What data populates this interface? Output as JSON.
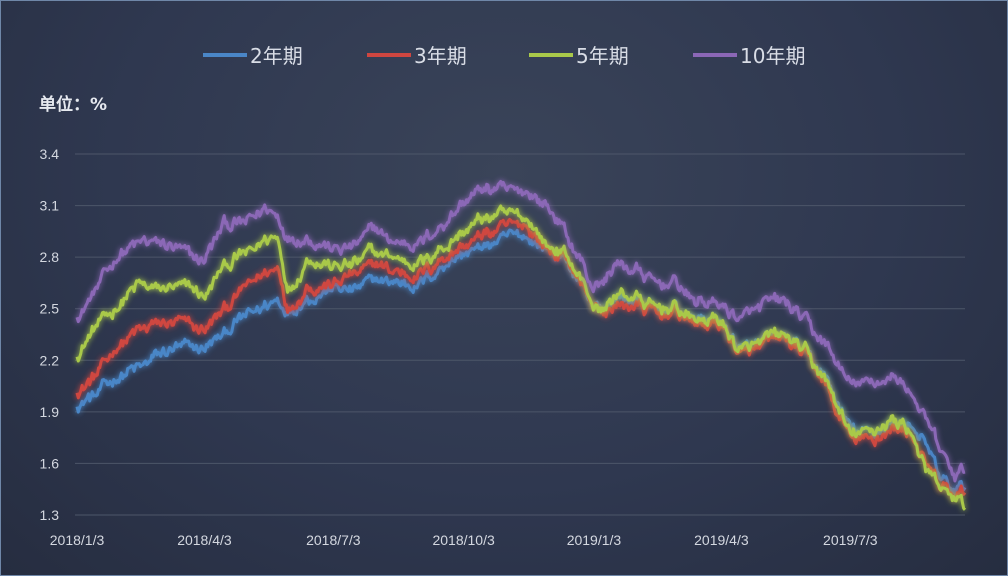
{
  "chart_data": {
    "type": "line",
    "unit_label": "单位：%",
    "x_tick_labels": [
      "2018/1/3",
      "2018/4/3",
      "2018/7/3",
      "2018/10/3",
      "2019/1/3",
      "2019/4/3",
      "2019/7/3"
    ],
    "y_tick_labels": [
      "1.3",
      "1.6",
      "1.9",
      "2.2",
      "2.5",
      "2.8",
      "3.1",
      "3.4"
    ],
    "ylim": [
      1.3,
      3.4
    ],
    "y_ticks": [
      1.3,
      1.6,
      1.9,
      2.2,
      2.5,
      2.8,
      3.1,
      3.4
    ],
    "grid": true,
    "legend_position": "top",
    "x": [
      "2018/1/3",
      "2018/1/17",
      "2018/2/1",
      "2018/2/15",
      "2018/3/1",
      "2018/3/15",
      "2018/4/3",
      "2018/4/17",
      "2018/5/2",
      "2018/5/16",
      "2018/5/25",
      "2018/6/1",
      "2018/6/15",
      "2018/7/3",
      "2018/7/17",
      "2018/8/1",
      "2018/8/15",
      "2018/9/3",
      "2018/9/17",
      "2018/10/3",
      "2018/10/17",
      "2018/11/1",
      "2018/11/15",
      "2018/12/1",
      "2018/12/15",
      "2019/1/3",
      "2019/1/10",
      "2019/1/17",
      "2019/2/1",
      "2019/2/15",
      "2019/3/1",
      "2019/3/15",
      "2019/4/3",
      "2019/4/17",
      "2019/5/2",
      "2019/5/16",
      "2019/6/1",
      "2019/6/15",
      "2019/7/3",
      "2019/7/17",
      "2019/8/1",
      "2019/8/15",
      "2019/8/25",
      "2019/9/5",
      "2019/9/15",
      "2019/9/22"
    ],
    "series": [
      {
        "name": "2年期",
        "color": "#4a86c7",
        "values": [
          1.93,
          2.0,
          2.1,
          2.15,
          2.22,
          2.27,
          2.27,
          2.35,
          2.46,
          2.52,
          2.56,
          2.48,
          2.56,
          2.62,
          2.6,
          2.67,
          2.66,
          2.64,
          2.75,
          2.82,
          2.86,
          2.9,
          2.93,
          2.85,
          2.78,
          2.52,
          2.48,
          2.55,
          2.55,
          2.49,
          2.5,
          2.45,
          2.43,
          2.25,
          2.3,
          2.35,
          2.25,
          2.1,
          1.8,
          1.76,
          1.84,
          1.83,
          1.7,
          1.5,
          1.45,
          1.46
        ]
      },
      {
        "name": "3年期",
        "color": "#cf4640",
        "values": [
          2.01,
          2.12,
          2.28,
          2.37,
          2.41,
          2.42,
          2.38,
          2.49,
          2.62,
          2.7,
          2.75,
          2.5,
          2.63,
          2.65,
          2.69,
          2.76,
          2.72,
          2.7,
          2.79,
          2.86,
          2.93,
          2.97,
          2.99,
          2.85,
          2.79,
          2.52,
          2.46,
          2.52,
          2.52,
          2.47,
          2.48,
          2.42,
          2.4,
          2.22,
          2.28,
          2.33,
          2.23,
          2.07,
          1.73,
          1.73,
          1.8,
          1.78,
          1.58,
          1.46,
          1.4,
          1.43
        ]
      },
      {
        "name": "5年期",
        "color": "#a9c94a",
        "values": [
          2.22,
          2.4,
          2.52,
          2.63,
          2.62,
          2.63,
          2.58,
          2.75,
          2.82,
          2.9,
          2.92,
          2.6,
          2.79,
          2.75,
          2.76,
          2.83,
          2.79,
          2.77,
          2.85,
          2.94,
          3.03,
          3.05,
          3.04,
          2.87,
          2.81,
          2.53,
          2.48,
          2.58,
          2.57,
          2.5,
          2.51,
          2.44,
          2.42,
          2.25,
          2.3,
          2.36,
          2.25,
          2.09,
          1.77,
          1.78,
          1.85,
          1.8,
          1.55,
          1.44,
          1.4,
          1.33
        ]
      },
      {
        "name": "10年期",
        "color": "#8b67b6",
        "values": [
          2.45,
          2.62,
          2.82,
          2.88,
          2.88,
          2.85,
          2.78,
          3.0,
          3.0,
          3.08,
          3.03,
          2.92,
          2.91,
          2.85,
          2.86,
          2.97,
          2.88,
          2.89,
          2.98,
          3.12,
          3.2,
          3.18,
          3.18,
          3.1,
          2.92,
          2.63,
          2.65,
          2.75,
          2.73,
          2.65,
          2.65,
          2.55,
          2.52,
          2.43,
          2.52,
          2.55,
          2.42,
          2.3,
          2.05,
          2.07,
          2.1,
          2.03,
          1.85,
          1.67,
          1.52,
          1.55
        ]
      }
    ]
  }
}
